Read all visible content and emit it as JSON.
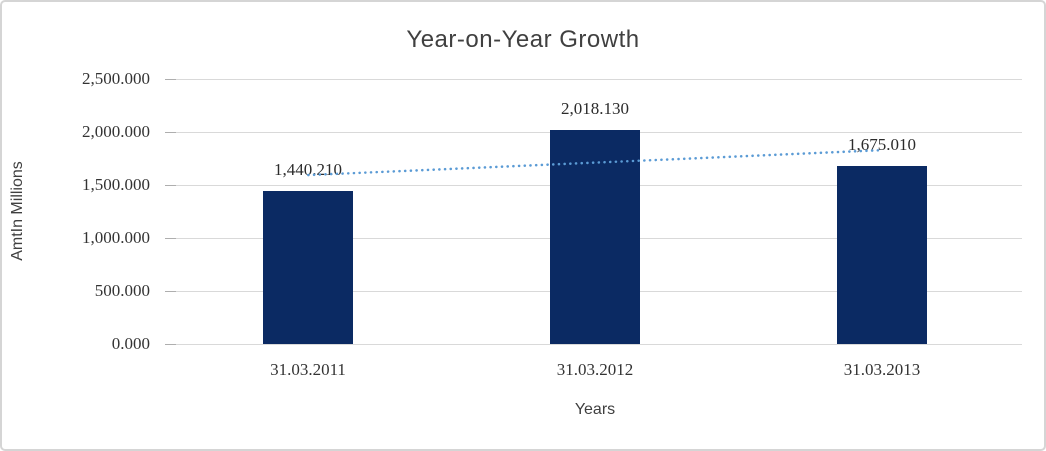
{
  "chart_data": {
    "type": "bar",
    "title": "Year-on-Year Growth",
    "xlabel": "Years",
    "ylabel": "AmtIn Millions",
    "categories": [
      "31.03.2011",
      "31.03.2012",
      "31.03.2013"
    ],
    "series": [
      {
        "name": "AmtIn Millions",
        "values": [
          1440.21,
          2018.13,
          1675.01
        ]
      }
    ],
    "data_labels": [
      "1,440.210",
      "2,018.130",
      "1,675.010"
    ],
    "ylim": [
      0,
      2500
    ],
    "ytick_labels": [
      "0.000",
      "500.000",
      "1,000.000",
      "1,500.000",
      "2,000.000",
      "2,500.000"
    ],
    "grid": true,
    "legend": "none",
    "trendline": {
      "type": "linear",
      "style": "dotted"
    },
    "colors": {
      "bar": "#0b2a63",
      "trendline": "#5b9bd5",
      "gridline": "#d9d9d9",
      "axis_tick": "#aeaeae",
      "title_text": "#404040",
      "number_text": "#2b2b2b",
      "frame_border": "#d5d5d5"
    }
  }
}
